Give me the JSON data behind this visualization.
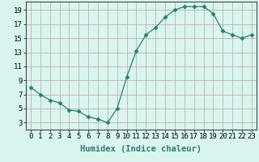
{
  "x": [
    0,
    1,
    2,
    3,
    4,
    5,
    6,
    7,
    8,
    9,
    10,
    11,
    12,
    13,
    14,
    15,
    16,
    17,
    18,
    19,
    20,
    21,
    22,
    23
  ],
  "y": [
    8.0,
    7.0,
    6.2,
    5.8,
    4.8,
    4.6,
    3.8,
    3.5,
    3.0,
    5.0,
    9.5,
    13.2,
    15.5,
    16.5,
    18.0,
    19.0,
    19.5,
    19.5,
    19.5,
    18.5,
    16.0,
    15.5,
    15.0,
    15.5
  ],
  "line_color": "#2e7d6e",
  "marker": "D",
  "marker_size": 2.5,
  "bg_color": "#d8f5f0",
  "grid_color": "#c4a0a0",
  "xlabel": "Humidex (Indice chaleur)",
  "xlim": [
    -0.5,
    23.5
  ],
  "ylim": [
    2,
    20.2
  ],
  "yticks": [
    3,
    5,
    7,
    9,
    11,
    13,
    15,
    17,
    19
  ],
  "xtick_labels": [
    "0",
    "1",
    "2",
    "3",
    "4",
    "5",
    "6",
    "7",
    "8",
    "9",
    "10",
    "11",
    "12",
    "13",
    "14",
    "15",
    "16",
    "17",
    "18",
    "19",
    "20",
    "21",
    "22",
    "23"
  ],
  "xlabel_fontsize": 7.5,
  "tick_fontsize": 6.5
}
